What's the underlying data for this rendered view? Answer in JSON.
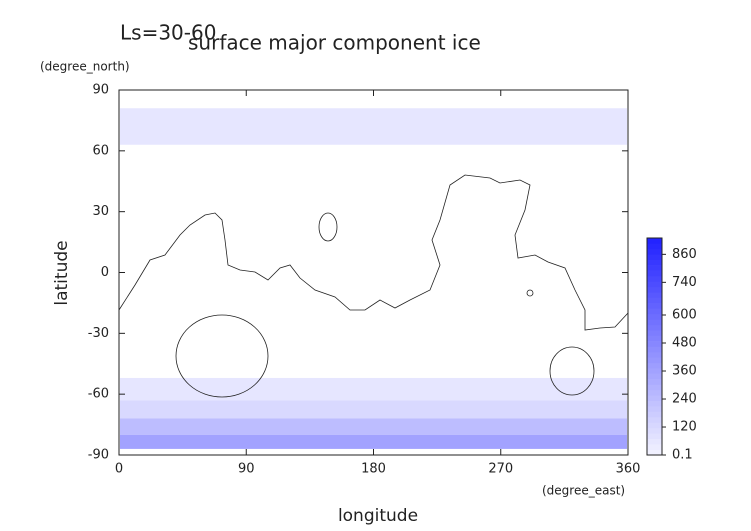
{
  "chart_data": {
    "type": "polar-ice-map",
    "title": "surface major component ice",
    "subtitle": "Ls=30-60",
    "x_label": "longitude",
    "x_unit": "(degree_east)",
    "y_label": "latitude",
    "y_unit": "(degree_north)",
    "xlim": [
      0,
      360
    ],
    "xticks": [
      0,
      90,
      180,
      270,
      360
    ],
    "ylim": [
      -90,
      90
    ],
    "yticks": [
      -90,
      -60,
      -30,
      0,
      30,
      60,
      90
    ],
    "bands": [
      {
        "lat": [
          63,
          81
        ],
        "value": 60
      },
      {
        "lat": [
          -63,
          -52
        ],
        "value": 60
      },
      {
        "lat": [
          -72,
          -63
        ],
        "value": 120
      },
      {
        "lat": [
          -80,
          -72
        ],
        "value": 240
      },
      {
        "lat": [
          -87,
          -80
        ],
        "value": 360
      }
    ],
    "clim": [
      0.1,
      930
    ],
    "cticks": [
      0.1,
      120,
      240,
      360,
      480,
      600,
      740,
      860
    ],
    "color_low": "#f4f4ff",
    "color_high": "#2020ff"
  }
}
